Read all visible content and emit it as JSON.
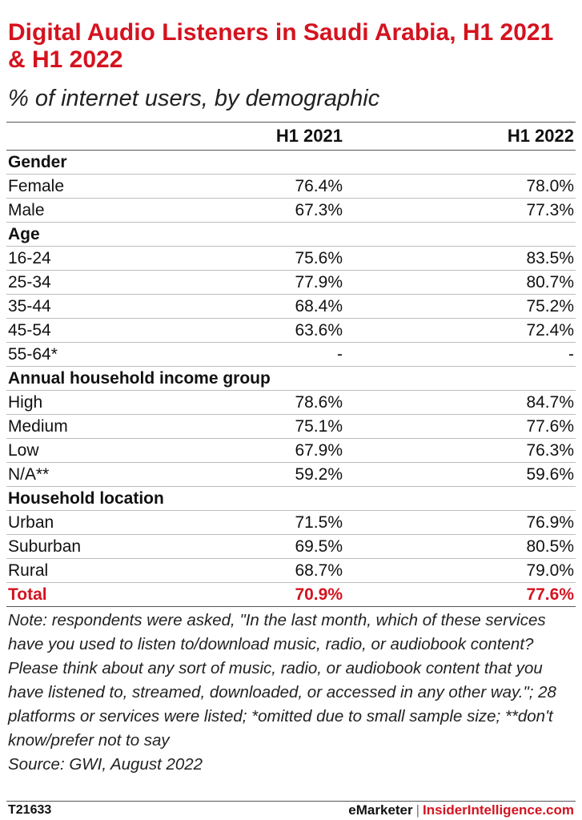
{
  "header": {
    "title": "Digital Audio Listeners in Saudi Arabia, H1 2021 & H1 2022",
    "subtitle": "% of internet users, by demographic"
  },
  "chart_data": {
    "type": "table",
    "columns": [
      "H1 2021",
      "H1 2022"
    ],
    "rows": [
      {
        "label": "Gender",
        "section": true
      },
      {
        "label": "Female",
        "values": [
          "76.4%",
          "78.0%"
        ]
      },
      {
        "label": "Male",
        "values": [
          "67.3%",
          "77.3%"
        ]
      },
      {
        "label": "Age",
        "section": true
      },
      {
        "label": "16-24",
        "values": [
          "75.6%",
          "83.5%"
        ]
      },
      {
        "label": "25-34",
        "values": [
          "77.9%",
          "80.7%"
        ]
      },
      {
        "label": "35-44",
        "values": [
          "68.4%",
          "75.2%"
        ]
      },
      {
        "label": "45-54",
        "values": [
          "63.6%",
          "72.4%"
        ]
      },
      {
        "label": "55-64*",
        "values": [
          "-",
          "-"
        ]
      },
      {
        "label": "Annual household income group",
        "section": true
      },
      {
        "label": "High",
        "values": [
          "78.6%",
          "84.7%"
        ]
      },
      {
        "label": "Medium",
        "values": [
          "75.1%",
          "77.6%"
        ]
      },
      {
        "label": "Low",
        "values": [
          "67.9%",
          "76.3%"
        ]
      },
      {
        "label": "N/A**",
        "values": [
          "59.2%",
          "59.6%"
        ]
      },
      {
        "label": "Household location",
        "section": true
      },
      {
        "label": "Urban",
        "values": [
          "71.5%",
          "76.9%"
        ]
      },
      {
        "label": "Suburban",
        "values": [
          "69.5%",
          "80.5%"
        ]
      },
      {
        "label": "Rural",
        "values": [
          "68.7%",
          "79.0%"
        ]
      },
      {
        "label": "Total",
        "values": [
          "70.9%",
          "77.6%"
        ],
        "total": true
      }
    ]
  },
  "note": "Note: respondents were asked, \"In the last month, which of these services have you used to listen to/download music, radio, or audiobook content? Please think about any sort of music, radio, or audiobook content that you have listened to, streamed, downloaded, or accessed in any other way.\"; 28 platforms or services were listed; *omitted due to small sample size; **don't know/prefer not to say",
  "source": "Source: GWI, August 2022",
  "footer": {
    "chart_id": "T21633",
    "brand_left": "eMarketer",
    "separator": "|",
    "brand_right": "InsiderIntelligence.com"
  },
  "colors": {
    "accent": "#d4131f",
    "text": "#111111"
  }
}
